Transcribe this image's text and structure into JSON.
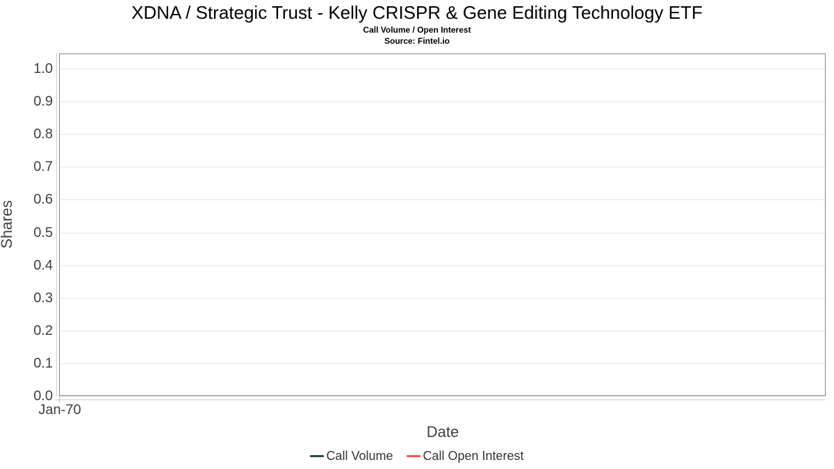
{
  "header": {
    "title": "XDNA / Strategic Trust - Kelly CRISPR & Gene Editing Technology ETF",
    "subtitle": "Call Volume / Open Interest",
    "source": "Source: Fintel.io"
  },
  "chart_data": {
    "type": "line",
    "title": "XDNA / Strategic Trust - Kelly CRISPR & Gene Editing Technology ETF",
    "subtitle": "Call Volume / Open Interest",
    "source": "Source: Fintel.io",
    "xlabel": "Date",
    "ylabel": "Shares",
    "x_ticks": [
      "Jan-70"
    ],
    "y_ticks": [
      "0.0",
      "0.1",
      "0.2",
      "0.3",
      "0.4",
      "0.5",
      "0.6",
      "0.7",
      "0.8",
      "0.9",
      "1.0"
    ],
    "ylim": [
      0.0,
      1.05
    ],
    "grid": true,
    "legend_position": "bottom",
    "series": [
      {
        "name": "Call Volume",
        "color": "#234f33",
        "x": [],
        "values": []
      },
      {
        "name": "Call Open Interest",
        "color": "#fa5252",
        "x": [],
        "values": []
      }
    ]
  },
  "colors": {
    "call_volume": "#234f33",
    "call_open_interest": "#fa5252",
    "gridline": "#e6e6e6",
    "plot_border": "#808080",
    "axis_line": "#cccccc",
    "tick_text": "#404040"
  }
}
